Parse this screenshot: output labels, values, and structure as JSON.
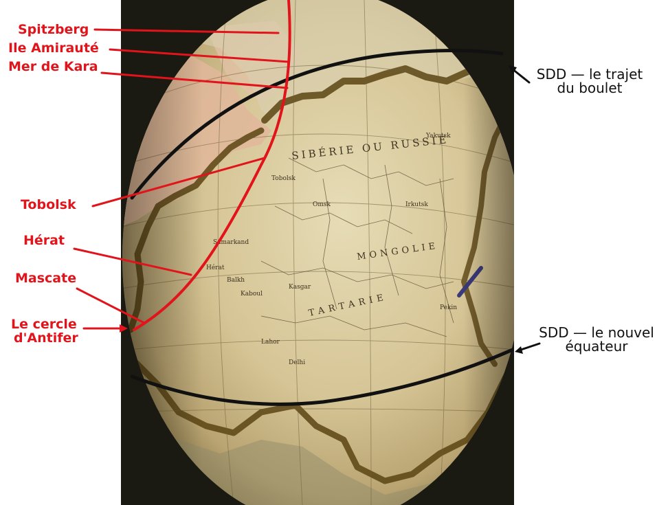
{
  "colors": {
    "annotation_red": "#e0141a",
    "annotation_black": "#111111",
    "globe_paper": "#d9c99b",
    "coast_shade": "#5b4413",
    "frame_dark": "#1a1a12"
  },
  "labels_left": [
    {
      "text": "Spitzberg"
    },
    {
      "text": "Ile Amirauté"
    },
    {
      "text": "Mer de Kara"
    },
    {
      "text": "Tobolsk"
    },
    {
      "text": "Hérat"
    },
    {
      "text": "Mascate"
    },
    {
      "text": "Le cercle"
    },
    {
      "text": "d'Antifer"
    }
  ],
  "labels_right": [
    {
      "lines": [
        "SDD — le trajet",
        "du boulet"
      ]
    },
    {
      "lines": [
        "SDD — le nouvel",
        "équateur"
      ]
    }
  ],
  "map_text": {
    "siberia": "SIBÉRIE OU RUSSIE",
    "tartary": "TARTARIE",
    "mongolia": "MONGOLIE",
    "places": [
      "Tobolsk",
      "Omsk",
      "Irkutsk",
      "Hérat",
      "Kaboul",
      "Balkh",
      "Kasgar",
      "Pekin",
      "Lahor",
      "Delhi",
      "Samarkand",
      "Yakutsk"
    ]
  }
}
